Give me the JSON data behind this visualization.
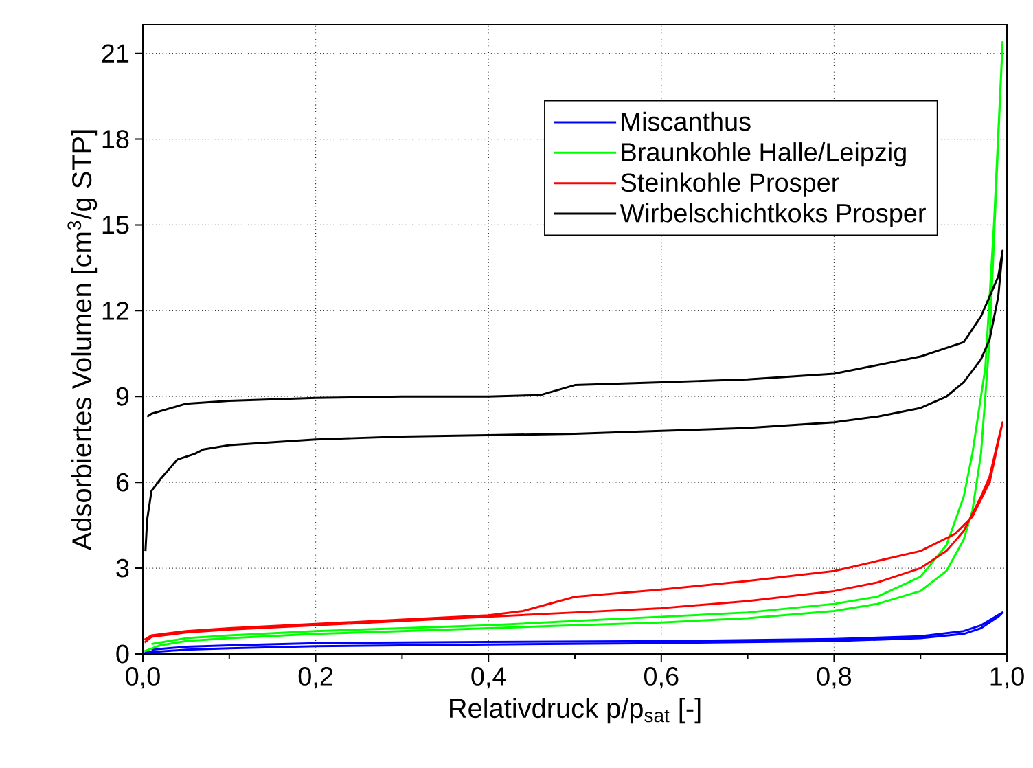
{
  "chart_data": {
    "type": "line",
    "xlabel": "Relativdruck p/p$_{sat}$ [-]",
    "ylabel": "Adsorbiertes Volumen [cm$^{3}$/g STP]",
    "xlim": [
      0,
      1.0
    ],
    "ylim": [
      0,
      22
    ],
    "xticks": [
      {
        "value": 0,
        "label": "0,0"
      },
      {
        "value": 0.2,
        "label": "0,2"
      },
      {
        "value": 0.4,
        "label": "0,4"
      },
      {
        "value": 0.6,
        "label": "0,6"
      },
      {
        "value": 0.8,
        "label": "0,8"
      },
      {
        "value": 1.0,
        "label": "1,0"
      }
    ],
    "yticks": [
      0,
      3,
      6,
      9,
      12,
      15,
      18,
      21
    ],
    "grid": true,
    "legend": "top right",
    "marker": "none",
    "line_style": "solid",
    "series": [
      {
        "name": "Miscanthus",
        "color": "#0000ff",
        "x": [
          0.002,
          0.05,
          0.1,
          0.2,
          0.4,
          0.6,
          0.8,
          0.9,
          0.95,
          0.97,
          0.99,
          0.995,
          0.97,
          0.95,
          0.9,
          0.8,
          0.6,
          0.4,
          0.2,
          0.1,
          0.05,
          0.01
        ],
        "values": [
          0.05,
          0.15,
          0.2,
          0.27,
          0.33,
          0.38,
          0.45,
          0.55,
          0.7,
          0.9,
          1.3,
          1.45,
          1.0,
          0.8,
          0.62,
          0.52,
          0.45,
          0.42,
          0.38,
          0.3,
          0.25,
          0.15
        ]
      },
      {
        "name": "Braunkohle Halle/Leipzig",
        "color": "#00ff00",
        "x": [
          0.002,
          0.02,
          0.05,
          0.1,
          0.2,
          0.3,
          0.4,
          0.5,
          0.6,
          0.7,
          0.8,
          0.85,
          0.9,
          0.93,
          0.95,
          0.96,
          0.97,
          0.98,
          0.99,
          0.995,
          0.985,
          0.975,
          0.96,
          0.95,
          0.93,
          0.9,
          0.85,
          0.8,
          0.7,
          0.6,
          0.5,
          0.4,
          0.3,
          0.2,
          0.1,
          0.05,
          0.01
        ],
        "values": [
          0.1,
          0.3,
          0.45,
          0.55,
          0.7,
          0.8,
          0.9,
          1.0,
          1.1,
          1.25,
          1.5,
          1.75,
          2.2,
          2.9,
          4,
          5,
          7,
          11,
          18,
          21.4,
          15,
          10,
          7,
          5.5,
          3.8,
          2.7,
          2.0,
          1.75,
          1.45,
          1.3,
          1.15,
          1.0,
          0.9,
          0.8,
          0.65,
          0.55,
          0.35
        ]
      },
      {
        "name": "Steinkohle Prosper",
        "color": "#ff0000",
        "x": [
          0.002,
          0.01,
          0.05,
          0.1,
          0.2,
          0.3,
          0.4,
          0.5,
          0.6,
          0.7,
          0.8,
          0.85,
          0.9,
          0.93,
          0.95,
          0.97,
          0.98,
          0.99,
          0.995,
          0.98,
          0.96,
          0.94,
          0.9,
          0.8,
          0.7,
          0.6,
          0.5,
          0.44,
          0.4,
          0.3,
          0.2,
          0.1,
          0.05,
          0.01,
          0.002
        ],
        "values": [
          0.4,
          0.6,
          0.75,
          0.85,
          1.0,
          1.15,
          1.3,
          1.45,
          1.6,
          1.85,
          2.2,
          2.5,
          3.0,
          3.6,
          4.3,
          5.5,
          6.2,
          7.5,
          8.1,
          6.0,
          4.8,
          4.2,
          3.6,
          2.9,
          2.55,
          2.25,
          2.0,
          1.5,
          1.35,
          1.2,
          1.05,
          0.9,
          0.8,
          0.65,
          0.5
        ]
      },
      {
        "name": "Wirbelschichtkoks Prosper",
        "color": "#000000",
        "x": [
          0.003,
          0.005,
          0.01,
          0.02,
          0.04,
          0.06,
          0.07,
          0.1,
          0.15,
          0.2,
          0.3,
          0.4,
          0.5,
          0.6,
          0.7,
          0.8,
          0.85,
          0.9,
          0.93,
          0.95,
          0.97,
          0.98,
          0.99,
          0.995,
          0.99,
          0.97,
          0.95,
          0.9,
          0.8,
          0.7,
          0.6,
          0.5,
          0.46,
          0.4,
          0.3,
          0.2,
          0.1,
          0.05,
          0.01,
          0.005
        ],
        "values": [
          3.6,
          4.7,
          5.7,
          6.1,
          6.8,
          7.0,
          7.15,
          7.3,
          7.4,
          7.5,
          7.6,
          7.65,
          7.7,
          7.8,
          7.9,
          8.1,
          8.3,
          8.6,
          9.0,
          9.5,
          10.3,
          11.0,
          12.5,
          14.1,
          13.2,
          11.8,
          10.9,
          10.4,
          9.8,
          9.6,
          9.5,
          9.4,
          9.05,
          9.0,
          9.0,
          8.95,
          8.85,
          8.75,
          8.4,
          8.3
        ]
      }
    ]
  }
}
